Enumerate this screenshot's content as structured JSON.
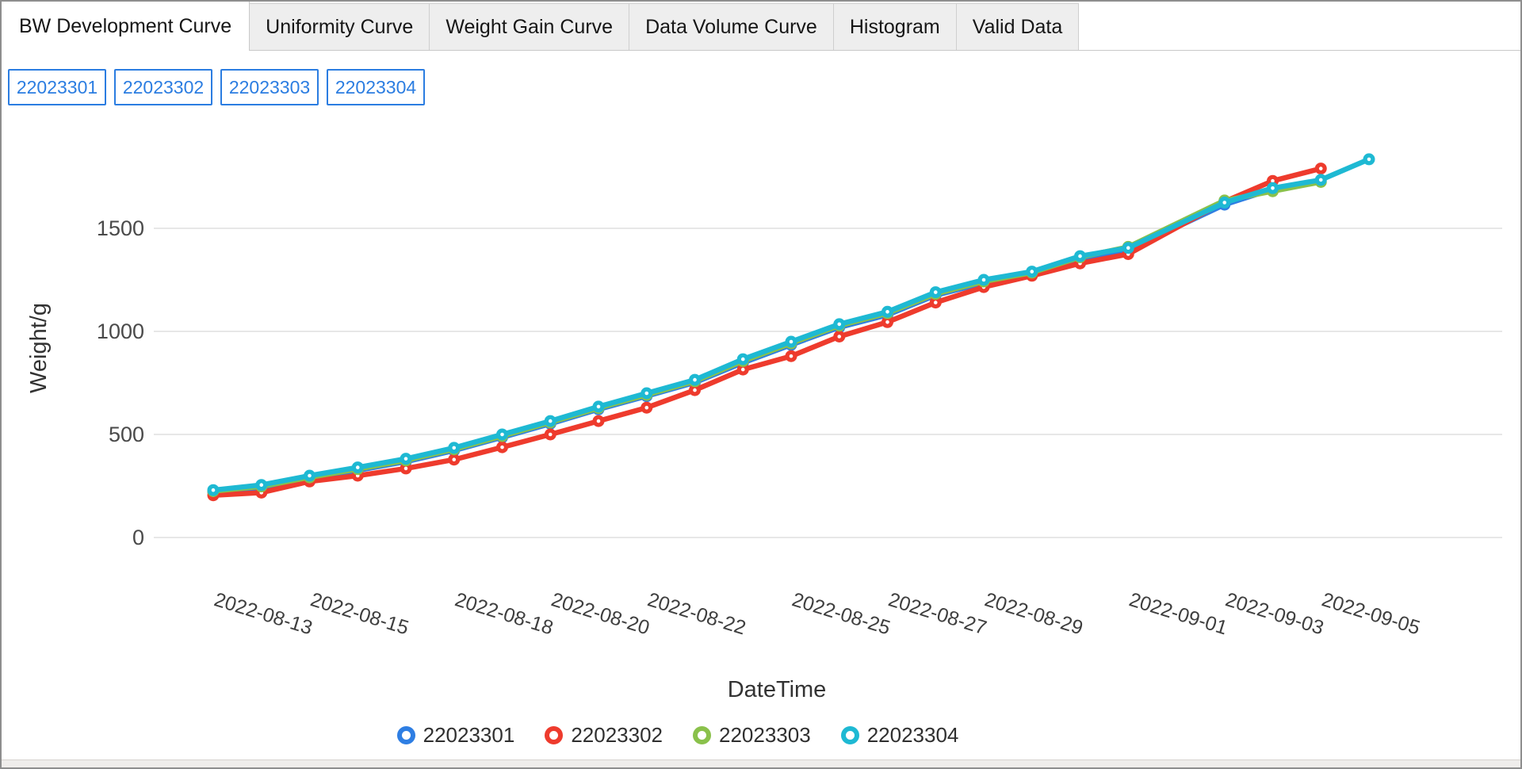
{
  "tabs": [
    {
      "label": "BW Development Curve",
      "active": true
    },
    {
      "label": "Uniformity Curve",
      "active": false
    },
    {
      "label": "Weight Gain Curve",
      "active": false
    },
    {
      "label": "Data Volume Curve",
      "active": false
    },
    {
      "label": "Histogram",
      "active": false
    },
    {
      "label": "Valid Data",
      "active": false
    }
  ],
  "filter_buttons": [
    "22023301",
    "22023302",
    "22023303",
    "22023304"
  ],
  "accent_color": "#2b7de1",
  "chart_data": {
    "type": "line",
    "title": "",
    "xlabel": "DateTime",
    "ylabel": "Weight/g",
    "ylim": [
      0,
      2000
    ],
    "yticks": [
      0,
      500,
      1000,
      1500
    ],
    "grid": true,
    "legend_position": "bottom",
    "xtick_labels": [
      "2022-08-13",
      "2022-08-15",
      "2022-08-18",
      "2022-08-20",
      "2022-08-22",
      "2022-08-25",
      "2022-08-27",
      "2022-08-29",
      "2022-09-01",
      "2022-09-03",
      "2022-09-05"
    ],
    "x": [
      "2022-08-12",
      "2022-08-13",
      "2022-08-14",
      "2022-08-15",
      "2022-08-16",
      "2022-08-17",
      "2022-08-18",
      "2022-08-19",
      "2022-08-20",
      "2022-08-21",
      "2022-08-22",
      "2022-08-23",
      "2022-08-24",
      "2022-08-25",
      "2022-08-26",
      "2022-08-27",
      "2022-08-28",
      "2022-08-29",
      "2022-08-30",
      "2022-08-31",
      "2022-09-02",
      "2022-09-03",
      "2022-09-04",
      "2022-09-05"
    ],
    "series": [
      {
        "name": "22023301",
        "color": "#2e7ee3",
        "values": [
          222,
          242,
          286,
          326,
          368,
          422,
          486,
          552,
          622,
          686,
          752,
          848,
          935,
          1020,
          1080,
          1175,
          1235,
          1278,
          1352,
          1395,
          1615,
          1690,
          null,
          null
        ]
      },
      {
        "name": "22023302",
        "color": "#ee3b2d",
        "values": [
          205,
          218,
          272,
          300,
          335,
          378,
          438,
          500,
          565,
          630,
          715,
          815,
          880,
          975,
          1045,
          1140,
          1215,
          1270,
          1330,
          1375,
          1630,
          1730,
          1790,
          null
        ]
      },
      {
        "name": "22023303",
        "color": "#8ac14b",
        "values": [
          225,
          248,
          292,
          332,
          374,
          428,
          492,
          558,
          628,
          692,
          758,
          856,
          942,
          1028,
          1088,
          1182,
          1242,
          1285,
          1360,
          1410,
          1635,
          1680,
          1725,
          null
        ]
      },
      {
        "name": "22023304",
        "color": "#1eb9d3",
        "values": [
          230,
          255,
          300,
          340,
          382,
          435,
          500,
          565,
          635,
          700,
          765,
          865,
          950,
          1035,
          1095,
          1190,
          1250,
          1290,
          1365,
          1405,
          1625,
          1695,
          1735,
          1835
        ]
      }
    ]
  }
}
